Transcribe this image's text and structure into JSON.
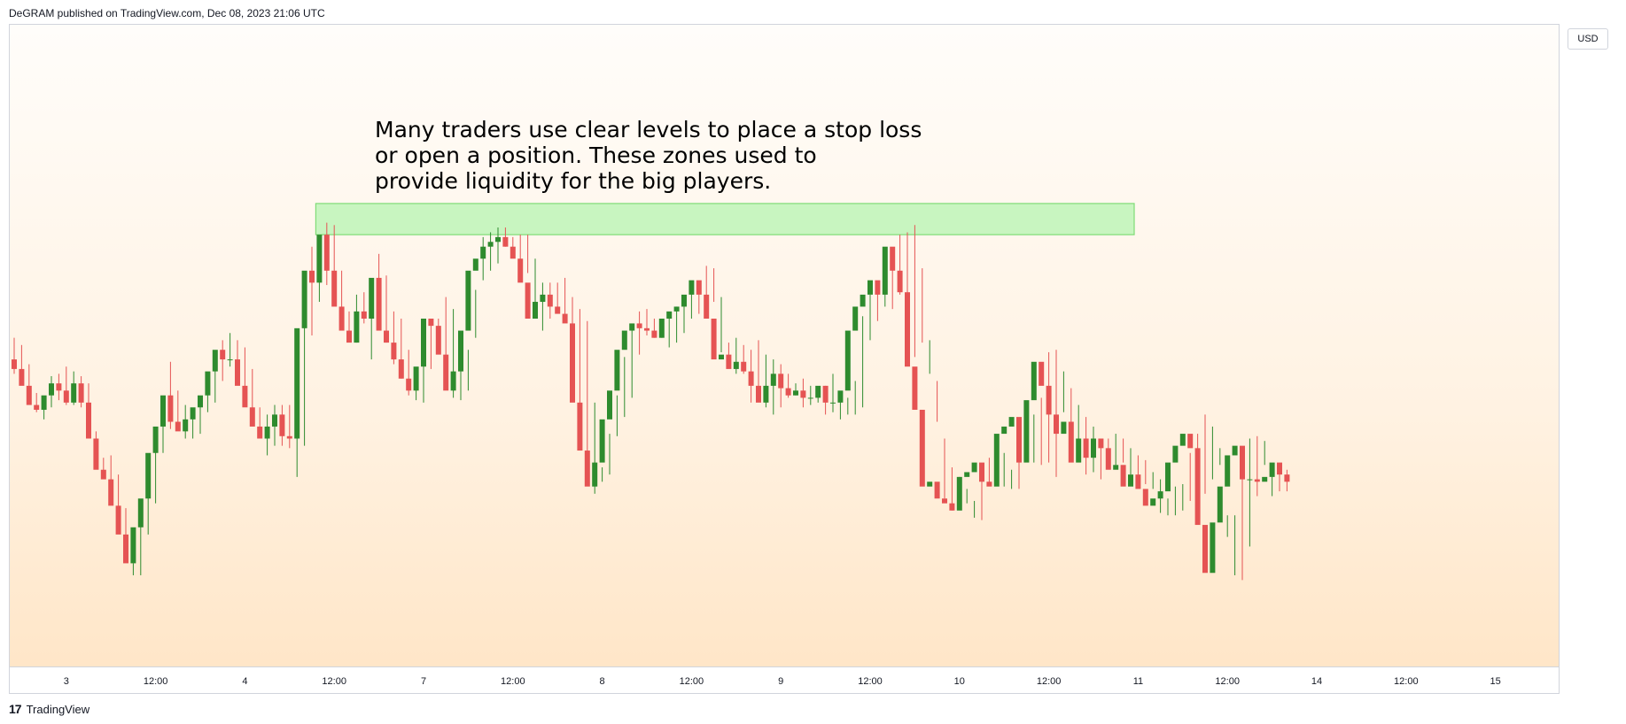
{
  "header": {
    "publisher_line": "DeGRAM published on TradingView.com, Dec 08, 2023 21:06 UTC"
  },
  "footer": {
    "brand_mark": "17",
    "brand_name": "TradingView"
  },
  "price_axis": {
    "currency": "USD"
  },
  "annotation": {
    "text": "Many traders use clear levels to place a stop loss\nor open a position. These zones used to\nprovide liquidity for the big players.",
    "arrow_color": "#e8334a",
    "arrow_at_index": 186
  },
  "colors": {
    "up": "#2e8b2e",
    "down": "#e55353",
    "zone_fill": "#c8f5c0",
    "zone_border": "#7fdc77"
  },
  "chart_data": {
    "type": "candlestick",
    "title": "",
    "xlabel": "",
    "ylabel": "",
    "ylim": [
      1.2641,
      1.28675
    ],
    "grid": false,
    "price_ticks": [
      "1.26500",
      "1.26600",
      "1.26700",
      "1.26800",
      "1.26900",
      "1.27000",
      "1.27100",
      "1.27200",
      "1.27300",
      "1.27400",
      "1.27500",
      "1.27600",
      "1.27700",
      "1.27800",
      "1.27900",
      "1.28000",
      "1.28100",
      "1.28200",
      "1.28300",
      "1.28400",
      "1.28500",
      "1.28600"
    ],
    "x_ticks": [
      {
        "label": "3",
        "index": 7
      },
      {
        "label": "12:00",
        "index": 19
      },
      {
        "label": "4",
        "index": 31
      },
      {
        "label": "12:00",
        "index": 43
      },
      {
        "label": "7",
        "index": 55
      },
      {
        "label": "12:00",
        "index": 67
      },
      {
        "label": "8",
        "index": 79
      },
      {
        "label": "12:00",
        "index": 91
      },
      {
        "label": "9",
        "index": 103
      },
      {
        "label": "12:00",
        "index": 115
      },
      {
        "label": "10",
        "index": 127
      },
      {
        "label": "12:00",
        "index": 139
      },
      {
        "label": "11",
        "index": 151
      },
      {
        "label": "12:00",
        "index": 163
      },
      {
        "label": "14",
        "index": 175
      },
      {
        "label": "12:00",
        "index": 187
      },
      {
        "label": "15",
        "index": 199
      }
    ],
    "zone": {
      "from_index": 41,
      "to_index": 150,
      "low": 1.2785,
      "high": 1.2798
    },
    "opens": [
      1.2733,
      1.2729,
      1.2722,
      1.2714,
      1.2712,
      1.2718,
      1.2723,
      1.272,
      1.2715,
      1.2723,
      1.2715,
      1.27,
      1.2687,
      1.2683,
      1.2672,
      1.266,
      1.2648,
      1.2663,
      1.2675,
      1.2694,
      1.2705,
      1.2718,
      1.2707,
      1.2703,
      1.2708,
      1.2713,
      1.2718,
      1.2728,
      1.2737,
      1.2733,
      1.2733,
      1.2722,
      1.2713,
      1.2705,
      1.27,
      1.2705,
      1.271,
      1.2701,
      1.27,
      1.2746,
      1.277,
      1.2765,
      1.2785,
      1.277,
      1.2755,
      1.2745,
      1.274,
      1.2753,
      1.275,
      1.2767,
      1.2745,
      1.274,
      1.2733,
      1.2725,
      1.272,
      1.273,
      1.275,
      1.2747,
      1.2735,
      1.272,
      1.2728,
      1.2745,
      1.277,
      1.2775,
      1.278,
      1.2782,
      1.2784,
      1.278,
      1.2775,
      1.2765,
      1.275,
      1.2757,
      1.276,
      1.2755,
      1.2752,
      1.2748,
      1.2715,
      1.2695,
      1.268,
      1.269,
      1.2708,
      1.272,
      1.2737,
      1.2745,
      1.2748,
      1.2746,
      1.2745,
      1.2742,
      1.275,
      1.2753,
      1.2755,
      1.276,
      1.2766,
      1.276,
      1.275,
      1.2733,
      1.2735,
      1.2729,
      1.2732,
      1.2728,
      1.2722,
      1.2715,
      1.2722,
      1.2727,
      1.2721,
      1.2718,
      1.272,
      1.2717,
      1.2717,
      1.2722,
      1.2715,
      1.2715,
      1.272,
      1.2745,
      1.2755,
      1.276,
      1.2766,
      1.276,
      1.278,
      1.277,
      1.2761,
      1.273,
      1.2712,
      1.268,
      1.2682,
      1.2675,
      1.2673,
      1.267,
      1.2684,
      1.2686,
      1.269,
      1.2682,
      1.268,
      1.2702,
      1.2705,
      1.2709,
      1.269,
      1.2716,
      1.2732,
      1.2722,
      1.271,
      1.2702,
      1.2707,
      1.269,
      1.27,
      1.2692,
      1.27,
      1.2696,
      1.2687,
      1.2689,
      1.268,
      1.2685,
      1.2679,
      1.2672,
      1.2675,
      1.2678,
      1.269,
      1.2697,
      1.2702,
      1.2696,
      1.2664,
      1.2644,
      1.2665,
      1.268,
      1.2693,
      1.2697,
      1.2683,
      1.2683,
      1.2682,
      1.2684,
      1.269,
      1.2685
    ],
    "highs": [
      1.2742,
      1.2739,
      1.2731,
      1.2719,
      1.2717,
      1.2726,
      1.2727,
      1.273,
      1.2728,
      1.2726,
      1.2723,
      1.2703,
      1.2692,
      1.2693,
      1.2685,
      1.2671,
      1.2648,
      1.2668,
      1.2679,
      1.2698,
      1.2709,
      1.2732,
      1.272,
      1.2714,
      1.2712,
      1.2716,
      1.2725,
      1.2734,
      1.2741,
      1.2744,
      1.2741,
      1.2738,
      1.2729,
      1.2713,
      1.271,
      1.2714,
      1.2714,
      1.2714,
      1.27,
      1.2751,
      1.278,
      1.2778,
      1.279,
      1.2789,
      1.277,
      1.2753,
      1.276,
      1.2761,
      1.2756,
      1.2777,
      1.2768,
      1.2753,
      1.275,
      1.2737,
      1.2726,
      1.2731,
      1.2749,
      1.275,
      1.2759,
      1.2754,
      1.2729,
      1.2737,
      1.2762,
      1.2784,
      1.2786,
      1.2788,
      1.2788,
      1.2784,
      1.2785,
      1.2785,
      1.2775,
      1.2765,
      1.2765,
      1.2765,
      1.2767,
      1.2759,
      1.2754,
      1.2749,
      1.2715,
      1.2688,
      1.2702,
      1.2718,
      1.2734,
      1.2746,
      1.2753,
      1.2754,
      1.275,
      1.275,
      1.275,
      1.2755,
      1.2758,
      1.2764,
      1.2764,
      1.2772,
      1.2771,
      1.2759,
      1.274,
      1.2742,
      1.2739,
      1.2737,
      1.2741,
      1.2735,
      1.2733,
      1.2731,
      1.2727,
      1.2723,
      1.2725,
      1.2722,
      1.2718,
      1.2722,
      1.2727,
      1.2717,
      1.2717,
      1.2724,
      1.2751,
      1.276,
      1.2765,
      1.2772,
      1.2776,
      1.2785,
      1.2786,
      1.2789,
      1.2771,
      1.2741,
      1.2724,
      1.27,
      1.2688,
      1.2684,
      1.2679,
      1.2674,
      1.2689,
      1.2692,
      1.2688,
      1.2694,
      1.2687,
      1.2706,
      1.2707,
      1.271,
      1.2717,
      1.2736,
      1.2737,
      1.2728,
      1.2721,
      1.2714,
      1.2709,
      1.2705,
      1.27,
      1.27,
      1.2702,
      1.27,
      1.2696,
      1.2693,
      1.2691,
      1.2686,
      1.2683,
      1.2675,
      1.268,
      1.2681,
      1.2694,
      1.2702,
      1.271,
      1.2705,
      1.2696,
      1.2668,
      1.2668,
      1.2684,
      1.27,
      1.2701,
      1.2699,
      1.2689,
      1.2689,
      1.2687,
      1.2692,
      1.2691
    ],
    "lows": [
      1.2727,
      1.2723,
      1.2717,
      1.2711,
      1.2708,
      1.2713,
      1.2716,
      1.2714,
      1.2714,
      1.2713,
      1.2713,
      1.2698,
      1.2684,
      1.268,
      1.2668,
      1.2653,
      1.2643,
      1.2643,
      1.266,
      1.2673,
      1.2694,
      1.2704,
      1.2705,
      1.27,
      1.27,
      1.2702,
      1.2711,
      1.2715,
      1.2724,
      1.273,
      1.273,
      1.2719,
      1.2711,
      1.2703,
      1.2693,
      1.2697,
      1.2697,
      1.2696,
      1.2684,
      1.2697,
      1.2743,
      1.2757,
      1.2764,
      1.2762,
      1.2751,
      1.2742,
      1.274,
      1.2748,
      1.2733,
      1.2747,
      1.274,
      1.2731,
      1.2725,
      1.2718,
      1.2716,
      1.2715,
      1.2729,
      1.274,
      1.2733,
      1.2717,
      1.2716,
      1.272,
      1.2742,
      1.2766,
      1.277,
      1.2773,
      1.278,
      1.2778,
      1.2771,
      1.2769,
      1.2753,
      1.2745,
      1.275,
      1.2753,
      1.275,
      1.2739,
      1.2713,
      1.2694,
      1.2677,
      1.2682,
      1.2685,
      1.2701,
      1.2709,
      1.2717,
      1.2735,
      1.2743,
      1.2742,
      1.2742,
      1.2738,
      1.274,
      1.2744,
      1.275,
      1.2752,
      1.2755,
      1.2757,
      1.2736,
      1.273,
      1.2727,
      1.2727,
      1.2715,
      1.2716,
      1.2713,
      1.271,
      1.2713,
      1.2717,
      1.2718,
      1.2713,
      1.2714,
      1.2715,
      1.271,
      1.2711,
      1.2708,
      1.271,
      1.271,
      1.2713,
      1.2741,
      1.2749,
      1.2755,
      1.2754,
      1.276,
      1.276,
      1.2734,
      1.274,
      1.2727,
      1.2707,
      1.2675,
      1.267,
      1.2672,
      1.2673,
      1.2667,
      1.2666,
      1.2681,
      1.2683,
      1.268,
      1.2679,
      1.2679,
      1.2693,
      1.269,
      1.2689,
      1.269,
      1.2684,
      1.2711,
      1.2706,
      1.27,
      1.2685,
      1.2686,
      1.2683,
      1.2688,
      1.2689,
      1.269,
      1.2685,
      1.2684,
      1.2681,
      1.2679,
      1.2669,
      1.2668,
      1.2668,
      1.267,
      1.2674,
      1.2672,
      1.2677,
      1.2683,
      1.2689,
      1.2659,
      1.2643,
      1.2641,
      1.2655,
      1.2676,
      1.2689,
      1.2676,
      1.2678,
      1.2678,
      1.2679,
      1.2678,
      1.2681,
      1.268
    ],
    "closes": [
      1.2729,
      1.2722,
      1.2714,
      1.2712,
      1.2718,
      1.2723,
      1.272,
      1.2715,
      1.2723,
      1.2715,
      1.27,
      1.2687,
      1.2683,
      1.2672,
      1.266,
      1.2648,
      1.2663,
      1.2675,
      1.2694,
      1.2705,
      1.2718,
      1.2707,
      1.2703,
      1.2708,
      1.2713,
      1.2718,
      1.2728,
      1.2737,
      1.2733,
      1.2733,
      1.2722,
      1.2713,
      1.2705,
      1.27,
      1.2705,
      1.271,
      1.2701,
      1.27,
      1.2746,
      1.277,
      1.2765,
      1.2785,
      1.277,
      1.2755,
      1.2745,
      1.274,
      1.2753,
      1.275,
      1.2767,
      1.2745,
      1.274,
      1.2733,
      1.2725,
      1.272,
      1.273,
      1.275,
      1.2747,
      1.2735,
      1.272,
      1.2728,
      1.2745,
      1.277,
      1.2775,
      1.278,
      1.2782,
      1.2784,
      1.278,
      1.2775,
      1.2765,
      1.275,
      1.2757,
      1.276,
      1.2755,
      1.2752,
      1.2748,
      1.2715,
      1.2695,
      1.268,
      1.269,
      1.2708,
      1.272,
      1.2737,
      1.2745,
      1.2748,
      1.2746,
      1.2745,
      1.2742,
      1.275,
      1.2753,
      1.2755,
      1.276,
      1.2766,
      1.276,
      1.275,
      1.2733,
      1.2735,
      1.2729,
      1.2732,
      1.2728,
      1.2722,
      1.2715,
      1.2722,
      1.2727,
      1.2721,
      1.2718,
      1.272,
      1.2717,
      1.2717,
      1.2722,
      1.2715,
      1.2715,
      1.272,
      1.2745,
      1.2755,
      1.276,
      1.2766,
      1.276,
      1.278,
      1.277,
      1.2761,
      1.273,
      1.2712,
      1.268,
      1.2682,
      1.2675,
      1.2673,
      1.267,
      1.2684,
      1.2686,
      1.269,
      1.2682,
      1.268,
      1.2702,
      1.2705,
      1.2709,
      1.269,
      1.2716,
      1.2732,
      1.2722,
      1.271,
      1.2702,
      1.2707,
      1.269,
      1.27,
      1.2692,
      1.27,
      1.2696,
      1.2687,
      1.2689,
      1.268,
      1.2685,
      1.2679,
      1.2672,
      1.2675,
      1.2678,
      1.269,
      1.2697,
      1.2702,
      1.2696,
      1.2664,
      1.2644,
      1.2665,
      1.268,
      1.2693,
      1.2697,
      1.2683,
      1.2683,
      1.2682,
      1.2684,
      1.269,
      1.2685,
      1.2682
    ]
  }
}
